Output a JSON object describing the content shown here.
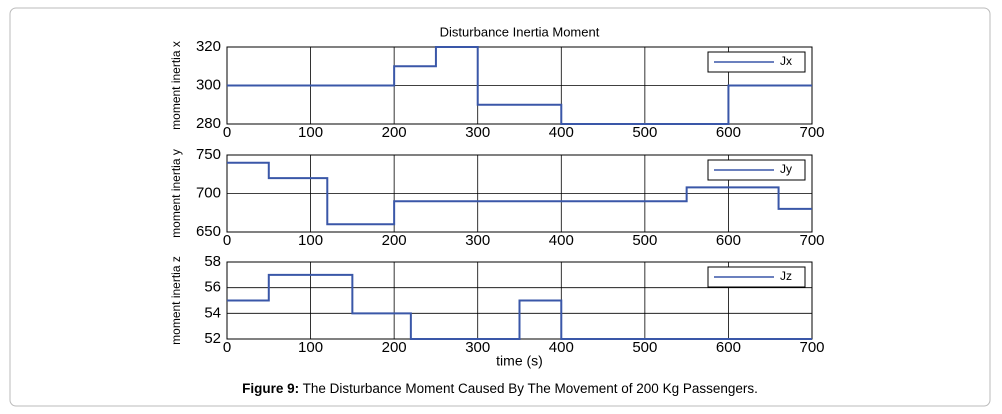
{
  "chart_data": [
    {
      "type": "line",
      "title": "Disturbance Inertia Moment",
      "y_label": "moment inertia x",
      "x": [
        0,
        200,
        200,
        250,
        250,
        300,
        300,
        400,
        400,
        600,
        600,
        700
      ],
      "series": [
        {
          "name": "Jx",
          "color": "#3a57a8",
          "values": [
            300,
            300,
            310,
            310,
            320,
            320,
            290,
            290,
            280,
            280,
            300,
            300
          ]
        }
      ],
      "xlim": [
        0,
        700
      ],
      "xticks": [
        0,
        100,
        200,
        300,
        400,
        500,
        600,
        700
      ],
      "ylim": [
        280,
        320
      ],
      "yticks": [
        280,
        300,
        320
      ],
      "grid": true,
      "legend": "upper right"
    },
    {
      "type": "line",
      "y_label": "moment inertia y",
      "x": [
        0,
        50,
        50,
        120,
        120,
        200,
        200,
        550,
        550,
        660,
        660,
        700
      ],
      "series": [
        {
          "name": "Jy",
          "color": "#3a57a8",
          "values": [
            740,
            740,
            720,
            720,
            660,
            660,
            690,
            690,
            708,
            708,
            680,
            680
          ]
        }
      ],
      "xlim": [
        0,
        700
      ],
      "xticks": [
        0,
        100,
        200,
        300,
        400,
        500,
        600,
        700
      ],
      "ylim": [
        650,
        750
      ],
      "yticks": [
        650,
        700,
        750
      ],
      "grid": true,
      "legend": "upper right"
    },
    {
      "type": "line",
      "y_label": "moment inertia z",
      "x_label": "time (s)",
      "x": [
        0,
        50,
        50,
        150,
        150,
        220,
        220,
        350,
        350,
        400,
        400,
        700
      ],
      "series": [
        {
          "name": "Jz",
          "color": "#3a57a8",
          "values": [
            55,
            55,
            57,
            57,
            54,
            54,
            52,
            52,
            55,
            55,
            52,
            52
          ]
        }
      ],
      "xlim": [
        0,
        700
      ],
      "xticks": [
        0,
        100,
        200,
        300,
        400,
        500,
        600,
        700
      ],
      "ylim": [
        52,
        58
      ],
      "yticks": [
        52,
        54,
        56,
        58
      ],
      "grid": true,
      "legend": "upper right"
    }
  ],
  "caption": {
    "label": "Figure 9:",
    "text": " The Disturbance Moment Caused By The Movement of 200 Kg Passengers."
  }
}
